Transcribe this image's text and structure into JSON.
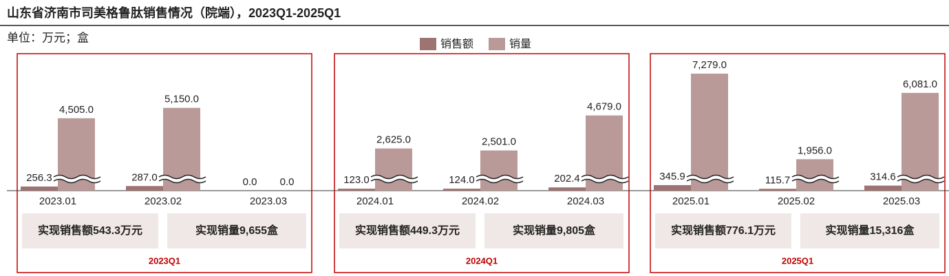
{
  "chart_data": {
    "type": "bar",
    "title": "山东省济南市司美格鲁肽销售情况（院端），2023Q1-2025Q1",
    "subtitle": "单位：万元；盒",
    "categories": [
      "2023.01",
      "2023.02",
      "2023.03",
      "2024.01",
      "2024.02",
      "2024.03",
      "2025.01",
      "2025.02",
      "2025.03"
    ],
    "series": [
      {
        "name": "销售额",
        "color": "#9e7472",
        "values": [
          256.3,
          287.0,
          0.0,
          123.0,
          124.0,
          202.4,
          345.9,
          115.7,
          314.6
        ],
        "value_labels": [
          "256.3",
          "287.0",
          "0.0",
          "123.0",
          "124.0",
          "202.4",
          "345.9",
          "115.7",
          "314.6"
        ]
      },
      {
        "name": "销量",
        "color": "#b99a98",
        "values": [
          4505.0,
          5150.0,
          0.0,
          2625.0,
          2501.0,
          4679.0,
          7279.0,
          1956.0,
          6081.0
        ],
        "value_labels": [
          "4,505.0",
          "5,150.0",
          "0.0",
          "2,625.0",
          "2,501.0",
          "4,679.0",
          "7,279.0",
          "1,956.0",
          "6,081.0"
        ]
      }
    ],
    "groups": [
      {
        "label": "2023Q1",
        "summaries": [
          "实现销售额543.3万元",
          "实现销量9,655盒"
        ]
      },
      {
        "label": "2024Q1",
        "summaries": [
          "实现销售额449.3万元",
          "实现销量9,805盒"
        ]
      },
      {
        "label": "2025Q1",
        "summaries": [
          "实现销售额776.1万元",
          "实现销量15,316盒"
        ]
      }
    ]
  }
}
